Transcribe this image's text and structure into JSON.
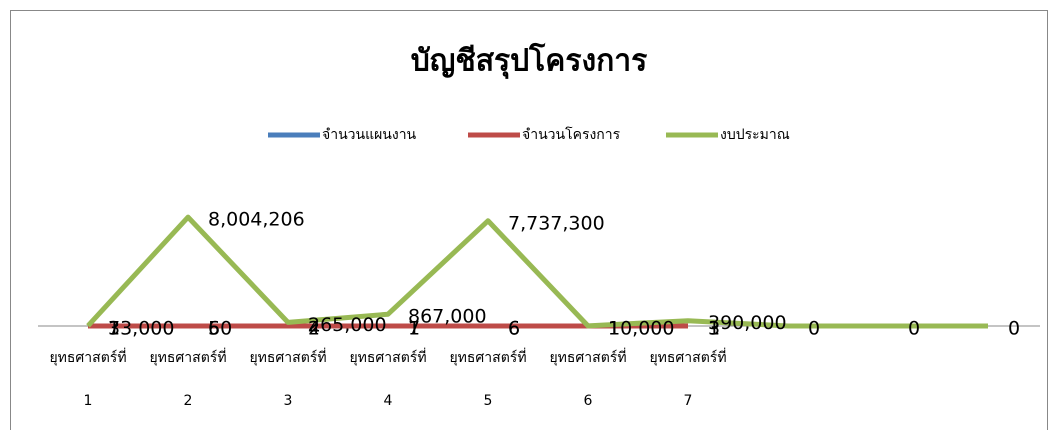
{
  "chart_data": {
    "type": "line",
    "title": "บัญชีสรุปโครงการ",
    "categories": [
      "ยุทธศาสตร์ที่ 1",
      "ยุทธศาสตร์ที่ 2",
      "ยุทธศาสตร์ที่ 3",
      "ยุทธศาสตร์ที่ 4",
      "ยุทธศาสตร์ที่ 5",
      "ยุทธศาสตร์ที่ 6",
      "ยุทธศาสตร์ที่ 7",
      null,
      null,
      null
    ],
    "series": [
      {
        "name": "จำนวนแผนงาน",
        "color": "#4a7ebb",
        "values": [
          7,
          6,
          2,
          1,
          6,
          1,
          3,
          null,
          null,
          null
        ]
      },
      {
        "name": "จำนวนโครงการ",
        "color": "#be4b48",
        "values": [
          3,
          50,
          4,
          7,
          6,
          1,
          1,
          null,
          null,
          null
        ]
      },
      {
        "name": "งบประมาณ",
        "color": "#98b954",
        "values": [
          13000,
          8004206,
          265000,
          867000,
          7737300,
          10000,
          390000,
          0,
          0,
          0
        ],
        "value_labels": [
          "13,000",
          "8,004,206",
          "265,000",
          "867,000",
          "7,737,300",
          "10,000",
          "390,000",
          "0",
          "0",
          "0"
        ]
      }
    ],
    "ylim": [
      0,
      10000000
    ],
    "legend": "top"
  }
}
